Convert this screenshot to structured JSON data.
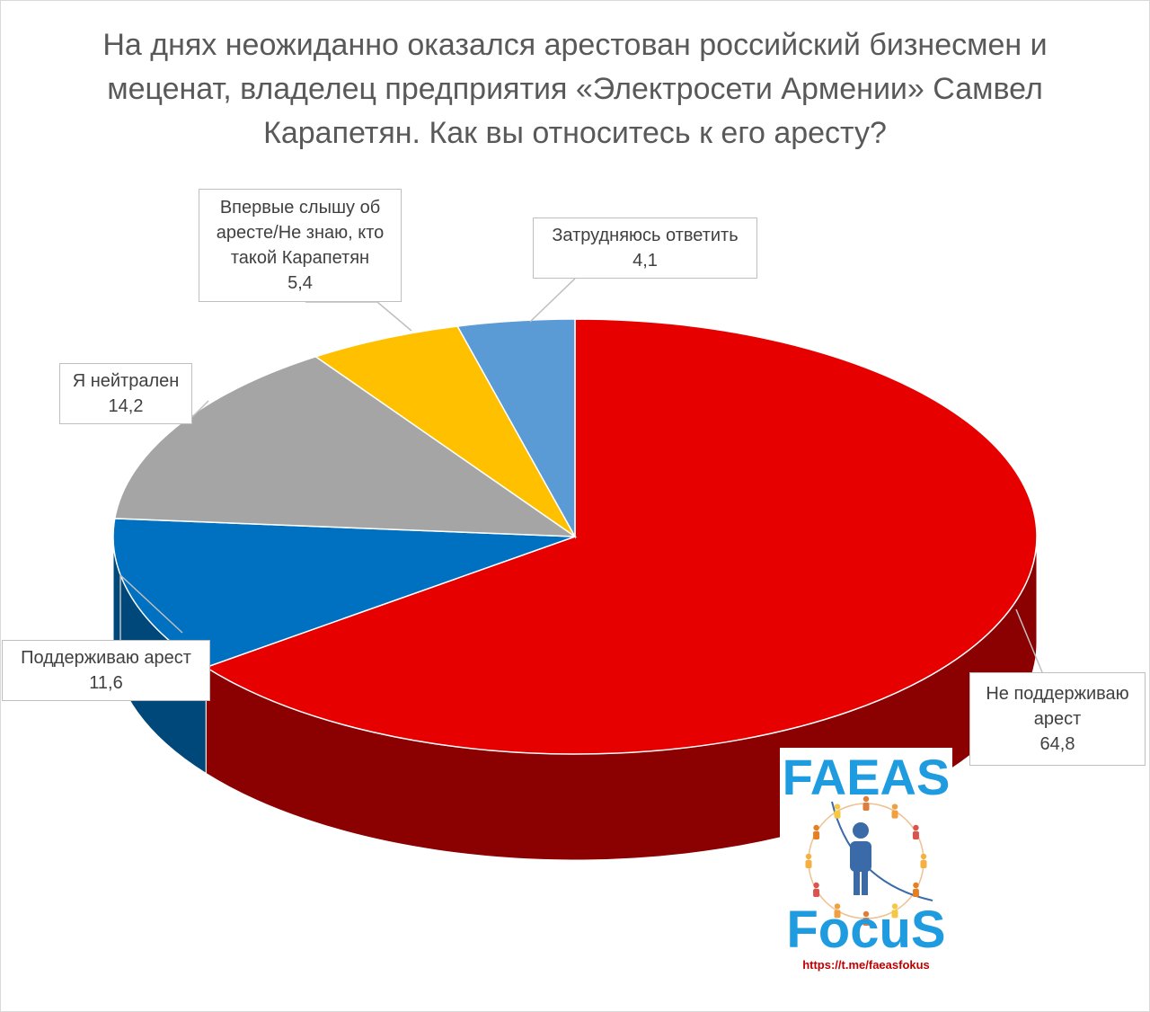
{
  "title": "На днях неожиданно оказался арестован российский бизнесмен и меценат, владелец предприятия «Электросети Армении» Самвел Карапетян. Как вы относитесь к его аресту?",
  "chart_data": {
    "type": "pie",
    "title": "На днях неожиданно оказался арестован российский бизнесмен и меценат, владелец предприятия «Электросети Армении» Самвел Карапетян. Как вы относитесь к его аресту?",
    "three_d": true,
    "slices": [
      {
        "label": "Не поддерживаю арест",
        "value": 64.8,
        "value_text": "64,8",
        "color": "#e60000",
        "side_color": "#8b0000"
      },
      {
        "label": "Поддерживаю арест",
        "value": 11.6,
        "value_text": "11,6",
        "color": "#0070c0",
        "side_color": "#00487a"
      },
      {
        "label": "Я нейтрален",
        "value": 14.2,
        "value_text": "14,2",
        "color": "#a5a5a5",
        "side_color": "#6e6e6e"
      },
      {
        "label": "Впервые слышу об аресте/Не знаю, кто такой Карапетян",
        "value": 5.4,
        "value_text": "5,4",
        "color": "#ffc000",
        "side_color": "#b38600"
      },
      {
        "label": "Затрудняюсь ответить",
        "value": 4.1,
        "value_text": "4,1",
        "color": "#5b9bd5",
        "side_color": "#3a6d99"
      }
    ]
  },
  "labels": {
    "not_support": {
      "line1": "Не поддерживаю",
      "line2": "арест",
      "value": "64,8"
    },
    "support": {
      "line1": "Поддерживаю арест",
      "value": "11,6"
    },
    "neutral": {
      "line1": "Я нейтрален",
      "value": "14,2"
    },
    "first_hear": {
      "line1": "Впервые слышу об",
      "line2": "аресте/Не знаю, кто",
      "line3": "такой Карапетян",
      "value": "5,4"
    },
    "hard": {
      "line1": "Затрудняюсь ответить",
      "value": "4,1"
    }
  },
  "logo": {
    "word_top": "FAEAS",
    "word_bottom": "FocuS",
    "link": "https://t.me/faeasfokus"
  }
}
